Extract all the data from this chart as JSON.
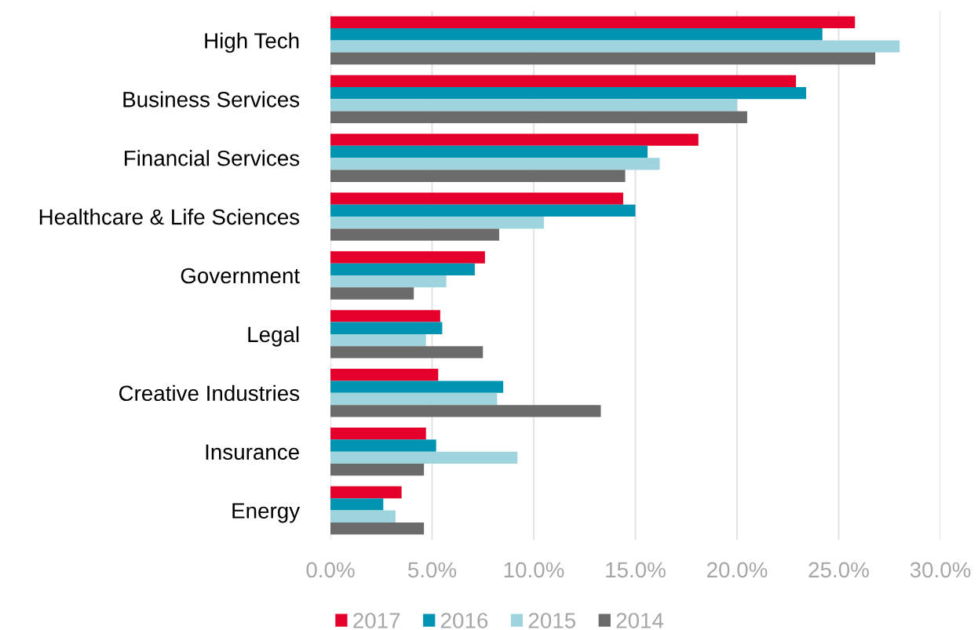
{
  "chart_data": {
    "type": "bar",
    "orientation": "horizontal",
    "categories": [
      "High Tech",
      "Business Services",
      "Financial Services",
      "Healthcare & Life Sciences",
      "Government",
      "Legal",
      "Creative Industries",
      "Insurance",
      "Energy"
    ],
    "series": [
      {
        "name": "2017",
        "color": "#e4002b",
        "values": [
          25.8,
          22.9,
          18.1,
          14.4,
          7.6,
          5.4,
          5.3,
          4.7,
          3.5
        ]
      },
      {
        "name": "2016",
        "color": "#0093b2",
        "values": [
          24.2,
          23.4,
          15.6,
          15.0,
          7.1,
          5.5,
          8.5,
          5.2,
          2.6
        ]
      },
      {
        "name": "2015",
        "color": "#9dd4de",
        "values": [
          28.0,
          20.0,
          16.2,
          10.5,
          5.7,
          4.7,
          8.2,
          9.2,
          3.2
        ]
      },
      {
        "name": "2014",
        "color": "#6a6b6a",
        "values": [
          26.8,
          20.5,
          14.5,
          8.3,
          4.1,
          7.5,
          13.3,
          4.6,
          4.6
        ]
      }
    ],
    "xlim": [
      0,
      30
    ],
    "xticks": [
      {
        "value": 0,
        "label": "0.0%"
      },
      {
        "value": 5,
        "label": "5.0%"
      },
      {
        "value": 10,
        "label": "10.0%"
      },
      {
        "value": 15,
        "label": "15.0%"
      },
      {
        "value": 20,
        "label": "20.0%"
      },
      {
        "value": 25,
        "label": "25.0%"
      },
      {
        "value": 30,
        "label": "30.0%"
      }
    ],
    "grid": "x",
    "legend": "bottom"
  }
}
